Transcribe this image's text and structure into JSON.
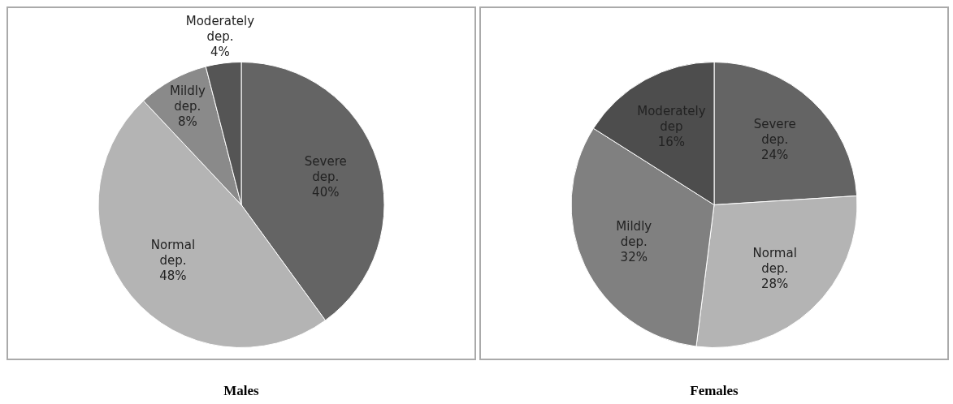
{
  "chart_data": [
    {
      "type": "pie",
      "title": "Males",
      "categories": [
        "Severe dep.",
        "Normal dep.",
        "Mildly dep.",
        "Moderately dep."
      ],
      "values": [
        40,
        48,
        8,
        4
      ],
      "value_labels": [
        "40%",
        "48%",
        "8%",
        "4%"
      ],
      "colors": [
        "#646464",
        "#b4b4b4",
        "#8a8a8a",
        "#555555"
      ]
    },
    {
      "type": "pie",
      "title": "Females",
      "categories": [
        "Severe dep.",
        "Normal dep.",
        "Mildly dep.",
        "Moderately dep"
      ],
      "values": [
        24,
        28,
        32,
        16
      ],
      "value_labels": [
        "24%",
        "28%",
        "32%",
        "16%"
      ],
      "colors": [
        "#646464",
        "#b4b4b4",
        "#808080",
        "#4d4d4d"
      ]
    }
  ]
}
